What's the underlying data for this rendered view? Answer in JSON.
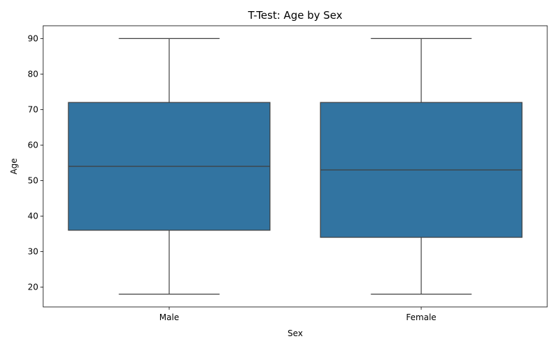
{
  "chart_data": {
    "type": "box",
    "title": "T-Test: Age by Sex",
    "xlabel": "Sex",
    "ylabel": "Age",
    "categories": [
      "Male",
      "Female"
    ],
    "ylim": [
      14.4,
      93.6
    ],
    "yticks": [
      20,
      30,
      40,
      50,
      60,
      70,
      80,
      90
    ],
    "grid": false,
    "boxes": [
      {
        "category": "Male",
        "min": 18,
        "q1": 36,
        "median": 54,
        "q3": 72,
        "max": 90
      },
      {
        "category": "Female",
        "min": 18,
        "q1": 34,
        "median": 53,
        "q3": 72,
        "max": 90
      }
    ],
    "colors": {
      "box_fill": "#3274a1",
      "line": "#3f3f3f",
      "axis": "#000000"
    }
  }
}
